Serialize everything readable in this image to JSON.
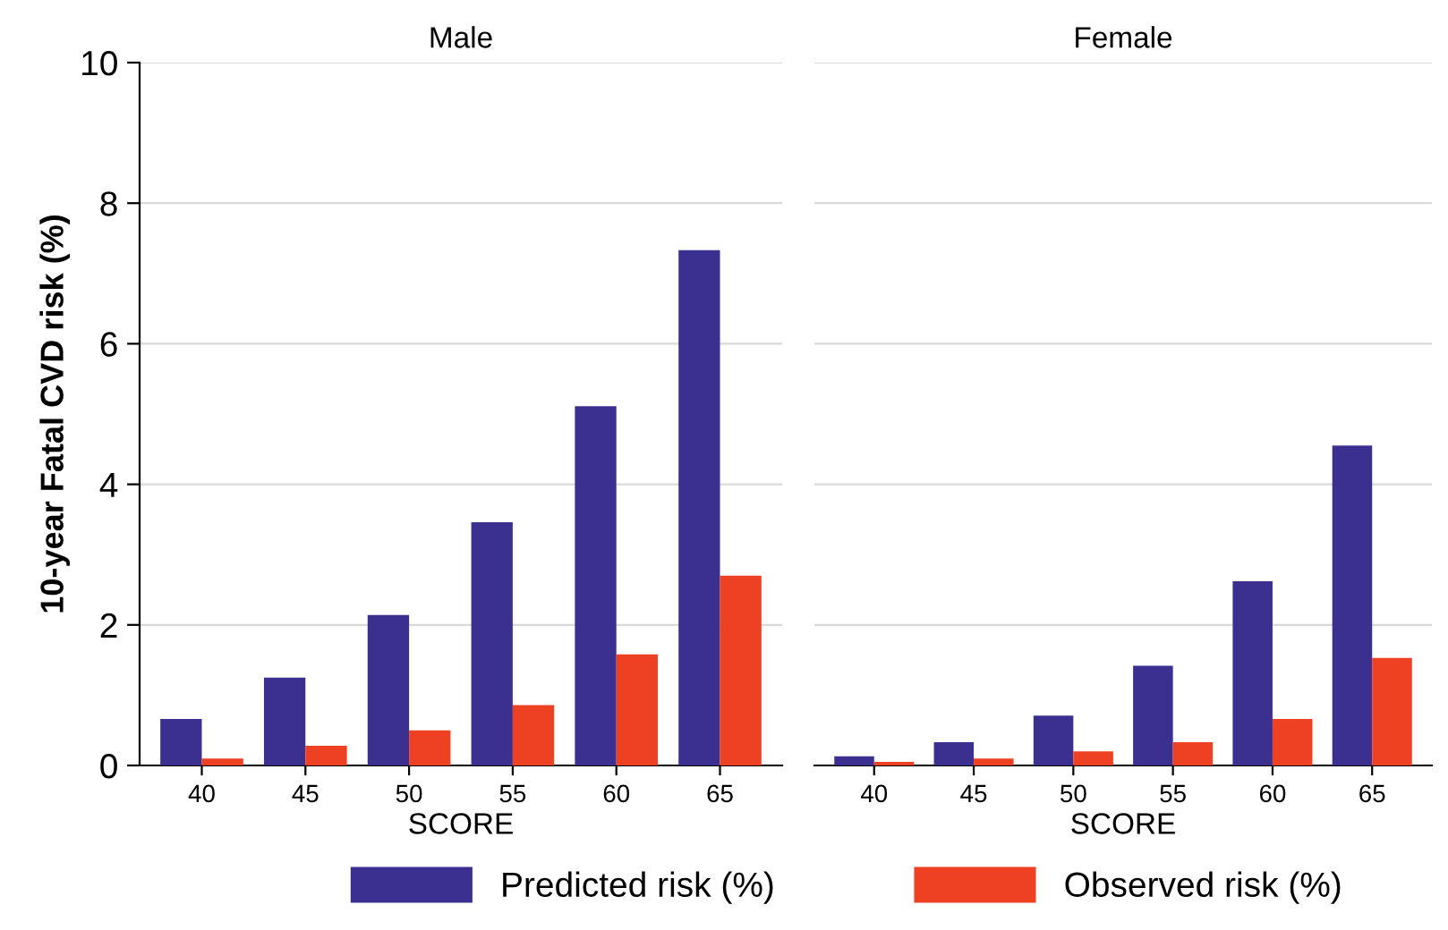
{
  "chart_data": [
    {
      "type": "bar",
      "title": "Male",
      "xlabel": "SCORE",
      "ylabel": "10-year Fatal CVD risk (%)",
      "categories": [
        "40",
        "45",
        "50",
        "55",
        "60",
        "65"
      ],
      "series": [
        {
          "name": "Predicted risk (%)",
          "color": "#3b2f8f",
          "values": [
            0.66,
            1.25,
            2.14,
            3.46,
            5.11,
            7.33
          ]
        },
        {
          "name": "Observed risk (%)",
          "color": "#ee4023",
          "values": [
            0.1,
            0.28,
            0.5,
            0.86,
            1.58,
            2.7
          ]
        }
      ],
      "ylim": [
        0,
        10
      ],
      "yticks": [
        0,
        2,
        4,
        6,
        8,
        10
      ],
      "grid": "y",
      "legend": "bottom"
    },
    {
      "type": "bar",
      "title": "Female",
      "xlabel": "SCORE",
      "categories": [
        "40",
        "45",
        "50",
        "55",
        "60",
        "65"
      ],
      "series": [
        {
          "color": "#3b2f8f",
          "values": [
            0.13,
            0.33,
            0.71,
            1.42,
            2.62,
            4.55
          ]
        },
        {
          "color": "#ee4023",
          "values": [
            0.05,
            0.1,
            0.2,
            0.33,
            0.66,
            1.53
          ]
        }
      ],
      "ylim": [
        0,
        10
      ],
      "yticks": [
        0,
        2,
        4,
        6,
        8,
        10
      ],
      "grid": "y",
      "tick_labels": "x"
    }
  ]
}
